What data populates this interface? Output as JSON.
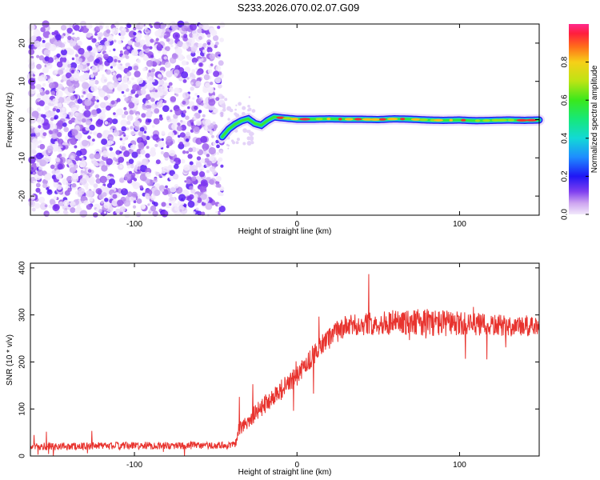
{
  "title": "S233.2026.070.02.07.G09",
  "colors": {
    "snr_line": "#e8332e",
    "axis": "#000000",
    "background": "#ffffff"
  },
  "chart_data": [
    {
      "type": "heatmap",
      "name": "spectrogram",
      "xlabel": "Height of straight line (km)",
      "ylabel": "Frequency (Hz)",
      "xlim": [
        -164,
        149
      ],
      "ylim": [
        -25,
        25
      ],
      "xticks": [
        -100,
        0,
        100
      ],
      "yticks": [
        -20,
        -10,
        0,
        10,
        20
      ],
      "noise_region_x": [
        -164,
        -46
      ],
      "signal_frequency_track": {
        "x": [
          -46,
          -42,
          -38,
          -34,
          -30,
          -26,
          -22,
          -18,
          -14,
          -10,
          -5,
          0,
          10,
          20,
          30,
          40,
          50,
          60,
          70,
          80,
          90,
          100,
          110,
          120,
          130,
          140,
          149
        ],
        "y": [
          -4.5,
          -2.5,
          -1.2,
          -0.3,
          0.2,
          -1.0,
          -1.5,
          -0.2,
          0.7,
          0.5,
          0.3,
          0.1,
          0.1,
          0.2,
          0.1,
          0.1,
          0.0,
          0.2,
          0.1,
          -0.1,
          -0.2,
          -0.1,
          -0.3,
          -0.2,
          -0.1,
          -0.2,
          -0.1
        ]
      },
      "colorbar": {
        "label": "Normalized spectral amplitude",
        "range": [
          0,
          1
        ],
        "ticks": [
          "0.0",
          "0.2",
          "0.4",
          "0.6",
          "0.8"
        ],
        "tick_values": [
          0,
          0.2,
          0.4,
          0.6,
          0.8
        ]
      }
    },
    {
      "type": "line",
      "name": "snr",
      "xlabel": "Height of straight line (km)",
      "ylabel": "SNR (10 * v/v)",
      "xlim": [
        -164,
        149
      ],
      "ylim": [
        0,
        410
      ],
      "xticks": [
        -100,
        0,
        100
      ],
      "yticks": [
        0,
        100,
        200,
        300,
        400
      ],
      "series": [
        {
          "name": "SNR",
          "trend_x": [
            -164,
            -130,
            -100,
            -60,
            -38,
            -36,
            -30,
            -20,
            -10,
            0,
            10,
            20,
            30,
            40,
            60,
            80,
            100,
            120,
            140,
            149
          ],
          "trend_y": [
            20,
            21,
            22,
            22,
            23,
            55,
            75,
            110,
            140,
            170,
            215,
            255,
            275,
            280,
            285,
            285,
            280,
            278,
            275,
            272
          ],
          "noise_amplitude_y": [
            8,
            8,
            8,
            8,
            8,
            14,
            18,
            20,
            22,
            22,
            22,
            24,
            24,
            24,
            26,
            30,
            28,
            24,
            22,
            22
          ]
        }
      ]
    }
  ],
  "colorbar_ticks": [
    "0.0",
    "0.2",
    "0.4",
    "0.6",
    "0.8"
  ]
}
